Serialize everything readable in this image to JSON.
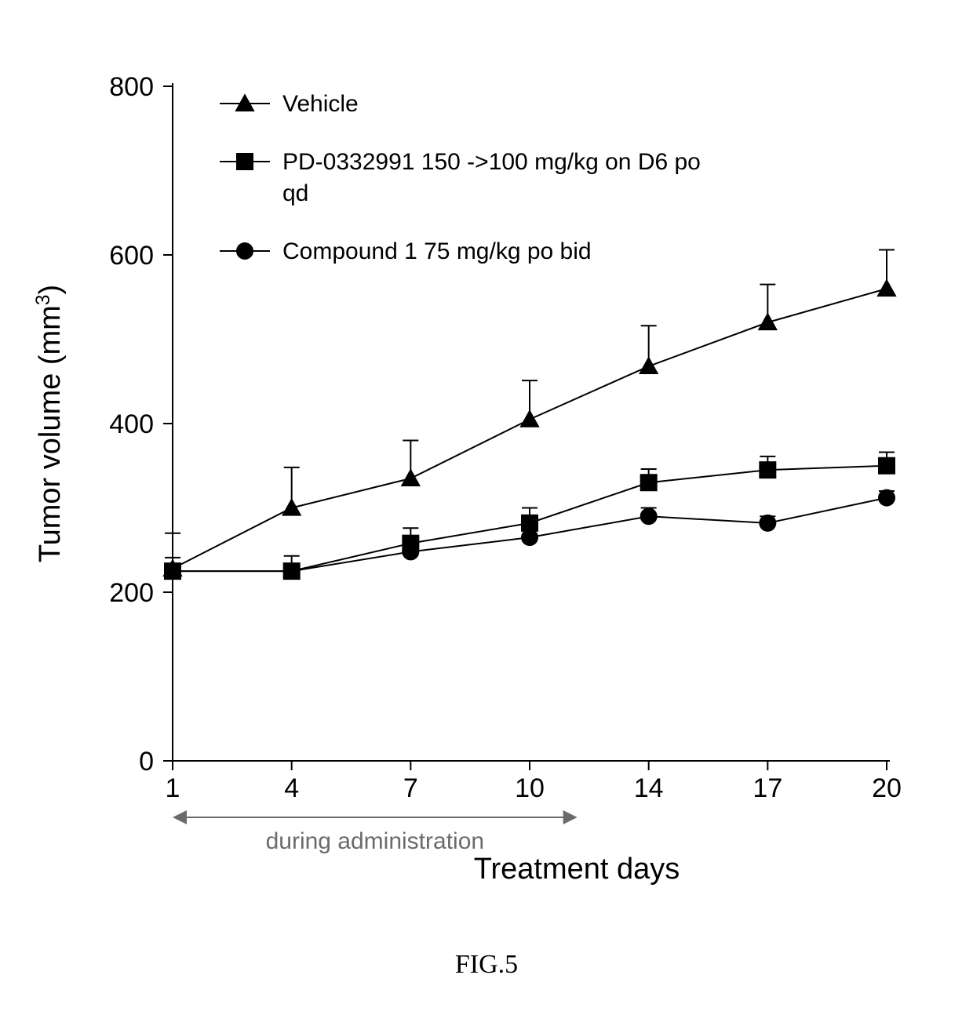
{
  "chart": {
    "type": "line",
    "background_color": "#ffffff",
    "axis_color": "#000000",
    "tick_color": "#000000",
    "series_line_color": "#000000",
    "series_line_width": 2,
    "marker_fill": "#000000",
    "marker_size": 11,
    "error_bar_color": "#000000",
    "error_bar_cap": 10,
    "x_categories": [
      "1",
      "4",
      "7",
      "10",
      "14",
      "17",
      "20"
    ],
    "x_index": [
      0,
      1,
      2,
      3,
      4,
      5,
      6
    ],
    "ylim": [
      0,
      800
    ],
    "ytick_step": 200,
    "yticks": [
      0,
      200,
      400,
      600,
      800
    ],
    "y_label": "Tumor volume (mm",
    "y_label_sup": "3",
    "y_label_close": ")",
    "x_label": "Treatment days",
    "label_fontsize": 38,
    "tick_fontsize": 34,
    "legend_fontsize": 30,
    "annotation_text": "during administration",
    "annotation_fontsize": 30,
    "annotation_color": "#6b6b6b",
    "annotation_span_index": [
      0,
      3.4
    ],
    "caption": "FIG.5",
    "caption_fontsize": 34,
    "series": [
      {
        "name": "Vehicle",
        "legend": "Vehicle",
        "marker": "triangle",
        "y": [
          228,
          300,
          335,
          405,
          468,
          520,
          560
        ],
        "err": [
          42,
          48,
          45,
          46,
          48,
          45,
          46
        ]
      },
      {
        "name": "PD-0332991",
        "legend": "PD-0332991 150 ->100 mg/kg on D6 po",
        "legend_line2": "qd",
        "marker": "square",
        "y": [
          225,
          225,
          258,
          282,
          330,
          345,
          350
        ],
        "err": [
          16,
          18,
          18,
          18,
          16,
          16,
          16
        ]
      },
      {
        "name": "Compound 1",
        "legend": "Compound 1  75 mg/kg po bid",
        "marker": "circle",
        "y": [
          225,
          225,
          248,
          265,
          290,
          282,
          312
        ],
        "err": [
          0,
          8,
          12,
          10,
          10,
          8,
          8
        ]
      }
    ]
  }
}
